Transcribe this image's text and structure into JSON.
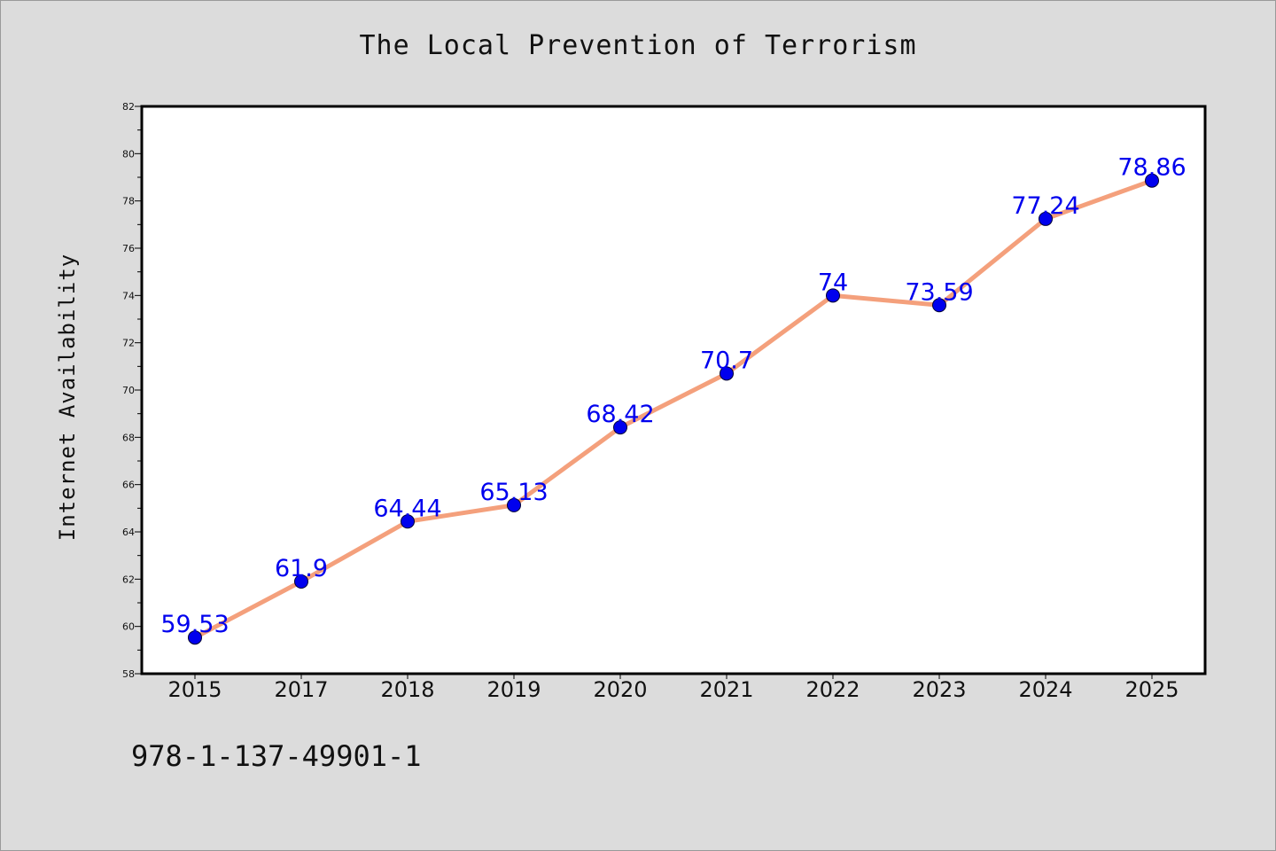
{
  "chart_data": {
    "type": "line",
    "title": "The Local Prevention of Terrorism",
    "xlabel": "",
    "ylabel": "Internet Availability",
    "categories": [
      "2015",
      "2017",
      "2018",
      "2019",
      "2020",
      "2021",
      "2022",
      "2023",
      "2024",
      "2025"
    ],
    "values": [
      59.53,
      61.9,
      64.44,
      65.13,
      68.42,
      70.7,
      74,
      73.59,
      77.24,
      78.86
    ],
    "data_labels": [
      "59.53",
      "61.9",
      "64.44",
      "65.13",
      "68.42",
      "70.7",
      "74",
      "73.59",
      "77.24",
      "78.86"
    ],
    "ylim": [
      58,
      82
    ],
    "yticks": [
      58,
      60,
      62,
      64,
      66,
      68,
      70,
      72,
      74,
      76,
      78,
      80,
      82
    ],
    "grid": false,
    "line_color": "#f4a07c",
    "marker_color": "#0000ee",
    "label_color": "#0000ee"
  },
  "footer": {
    "isbn": "978-1-137-49901-1"
  }
}
